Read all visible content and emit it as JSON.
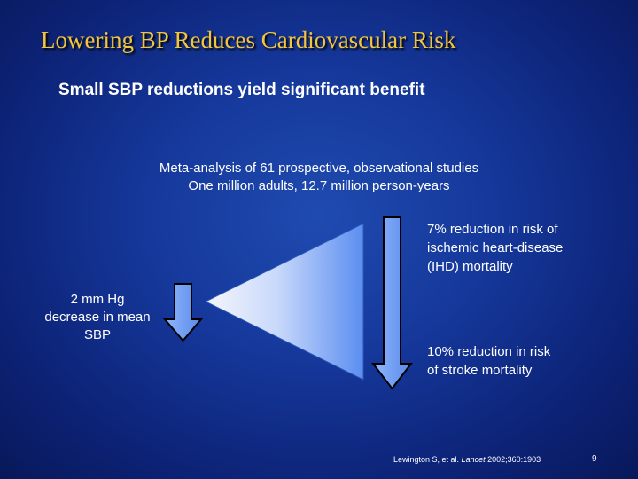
{
  "slide": {
    "title": "Lowering BP Reduces Cardiovascular Risk",
    "subtitle": "Small SBP reductions yield significant benefit",
    "meta_analysis": {
      "line1": "Meta-analysis of 61 prospective, observational studies",
      "line2": "One million adults, 12.7 million person-years"
    },
    "sbp_decrease": {
      "line1": "2 mm Hg",
      "line2": "decrease in mean",
      "line3": "SBP"
    },
    "ihd": {
      "line1": "7% reduction in risk of",
      "line2": "ischemic heart-disease",
      "line3": "(IHD) mortality"
    },
    "stroke": {
      "line1": "10% reduction in risk",
      "line2": "of stroke mortality"
    },
    "citation": {
      "prefix": "Lewington S, et al. ",
      "journal": "Lancet",
      "suffix": " 2002;360:1903"
    },
    "page_number": "9"
  },
  "colors": {
    "title": "#f2c53d",
    "arrow_fill": "#6fa0f5",
    "triangle_light": "#e8eefc",
    "triangle_dark": "#4a7fe8"
  },
  "icons": [
    "down-arrow-icon",
    "triangle-shape"
  ]
}
